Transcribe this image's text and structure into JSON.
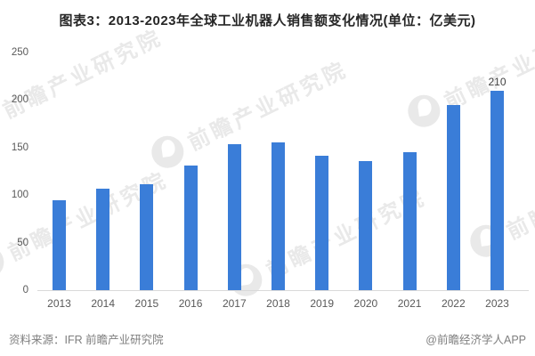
{
  "chart_data": {
    "type": "bar",
    "title": "图表3：2013-2023年全球工业机器人销售额变化情况(单位：亿美元)",
    "unit": "亿美元",
    "categories": [
      "2013",
      "2014",
      "2015",
      "2016",
      "2017",
      "2018",
      "2019",
      "2020",
      "2021",
      "2022",
      "2023"
    ],
    "values": [
      95,
      107,
      111,
      131,
      154,
      155,
      141,
      136,
      145,
      195,
      210
    ],
    "point_labels": [
      null,
      null,
      null,
      null,
      null,
      null,
      null,
      null,
      null,
      null,
      "210"
    ],
    "xlabel": "",
    "ylabel": "",
    "ylim": [
      0,
      250
    ],
    "yticks": [
      0,
      50,
      100,
      150,
      200,
      250
    ],
    "grid": false,
    "legend": "none",
    "bar_color": "#3A7DD8",
    "tick_label_color": "#595959",
    "axis_line_color": "#D9D9D9"
  },
  "footer": {
    "source": "资料来源：IFR 前瞻产业研究院",
    "credit": "@前瞻经济学人APP"
  },
  "watermark": {
    "text": "前瞻产业研究院"
  }
}
